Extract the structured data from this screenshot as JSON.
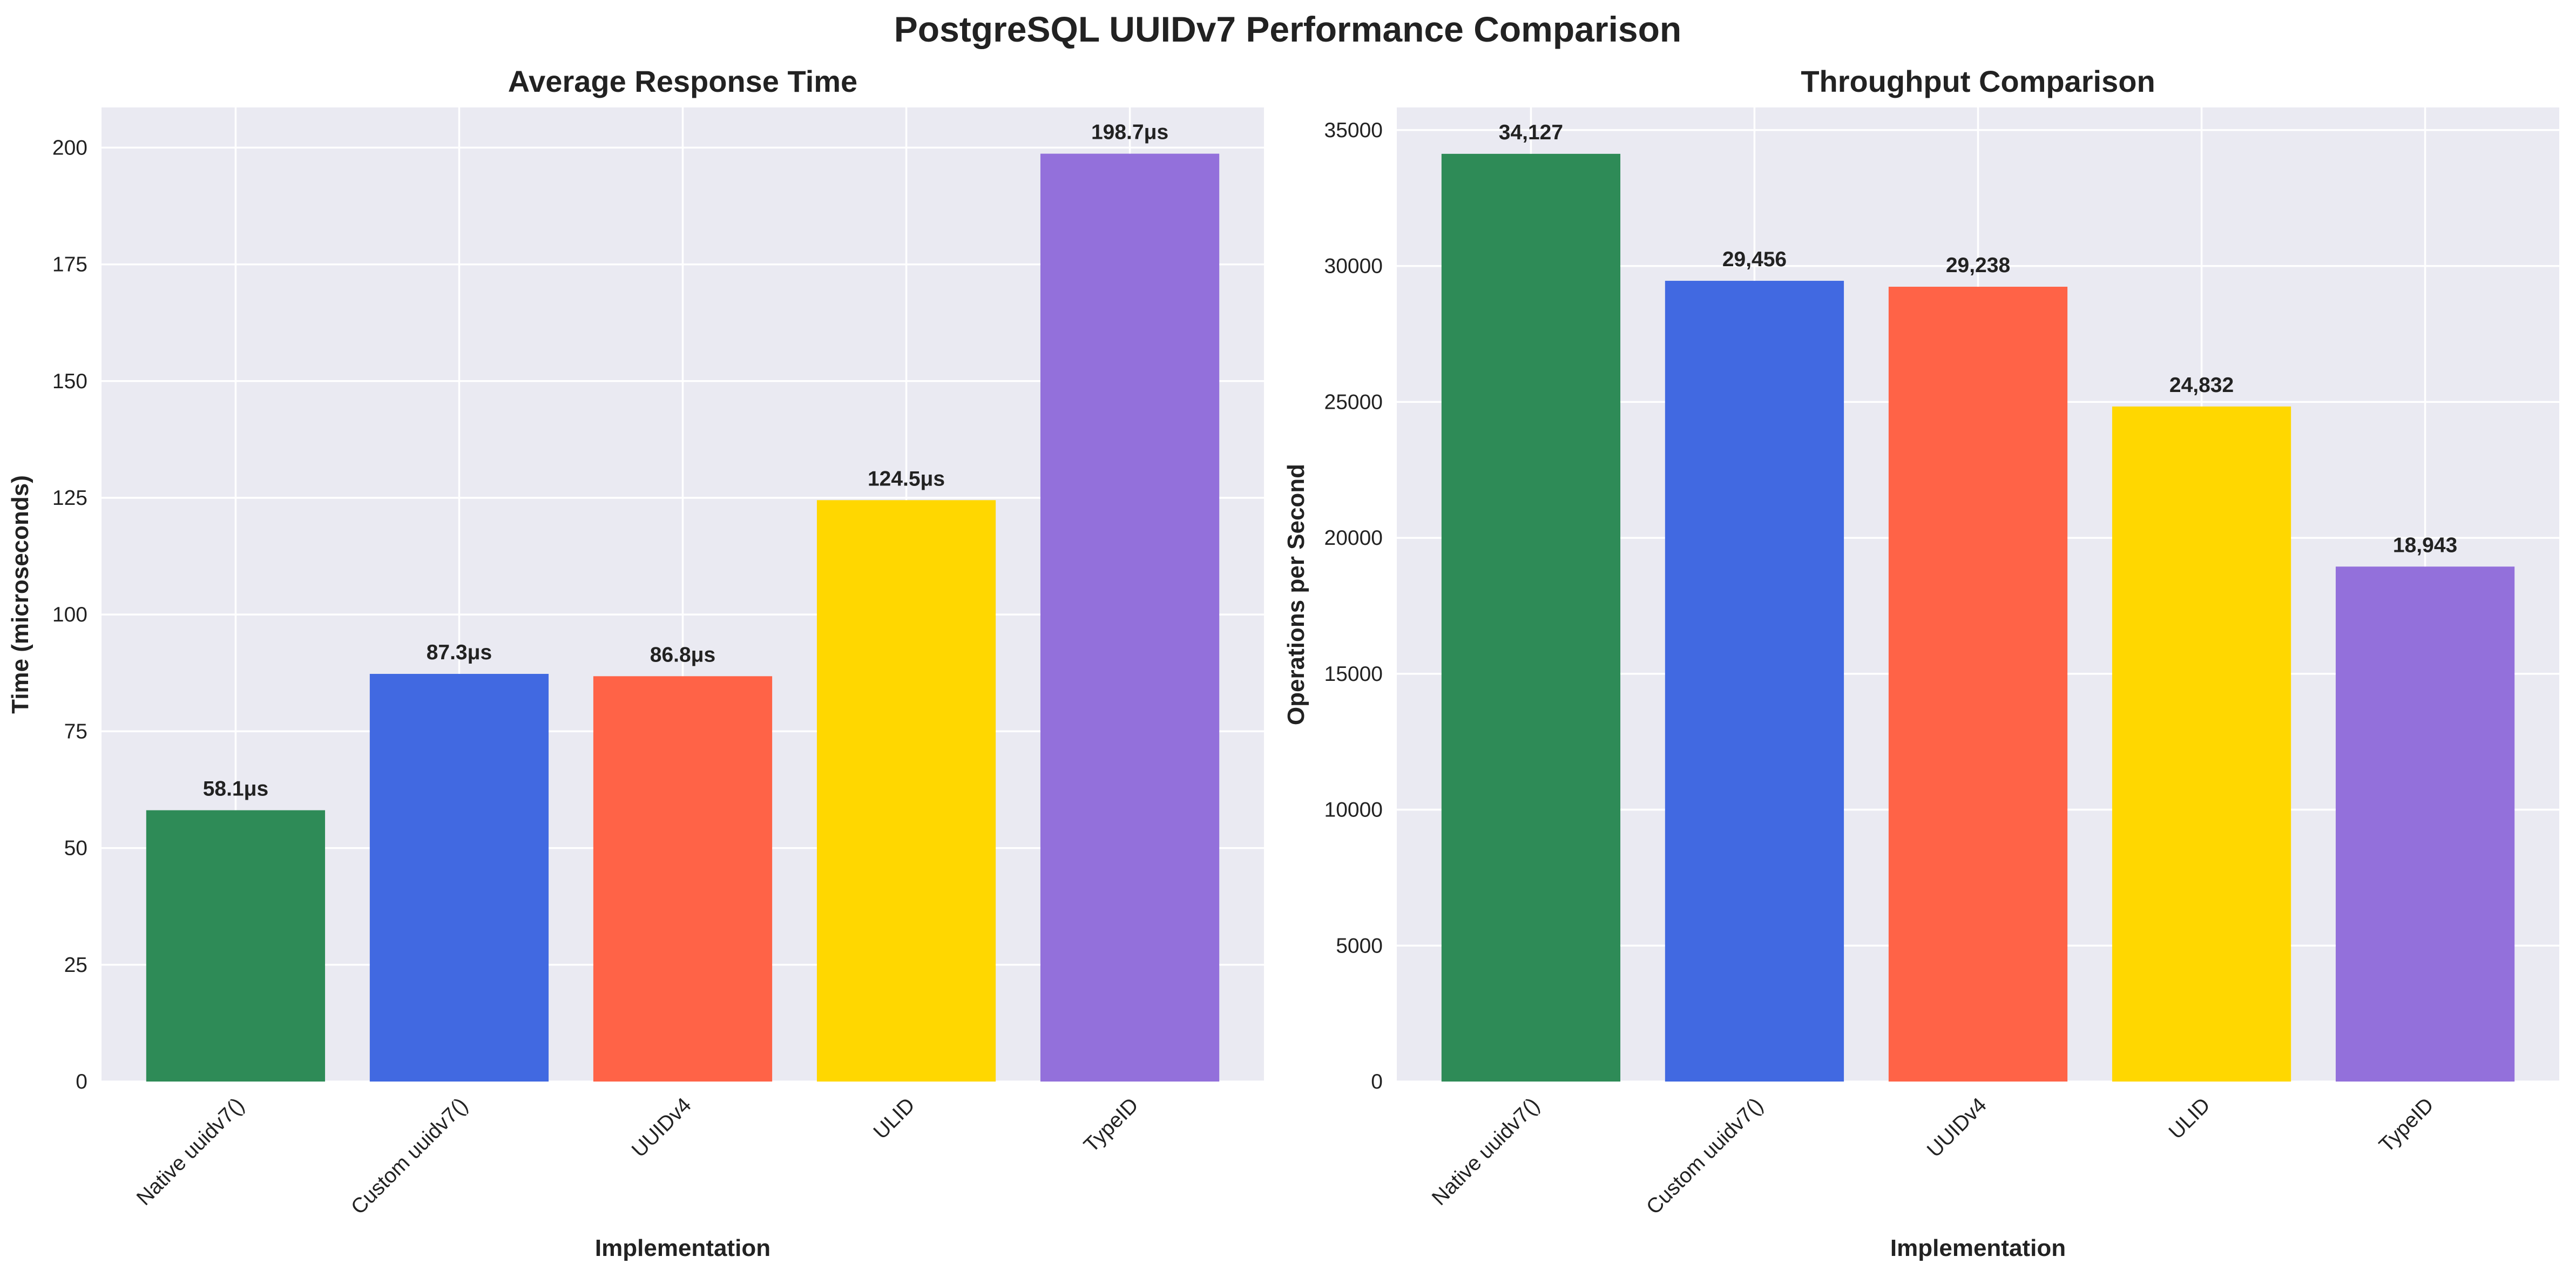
{
  "figure": {
    "title": "PostgreSQL UUIDv7 Performance Comparison"
  },
  "chart_data": [
    {
      "type": "bar",
      "title": "Average Response Time",
      "xlabel": "Implementation",
      "ylabel": "Time (microseconds)",
      "categories": [
        "Native uuidv7()",
        "Custom uuidv7()",
        "UUIDv4",
        "ULID",
        "TypeID"
      ],
      "values": [
        58.1,
        87.3,
        86.8,
        124.5,
        198.7
      ],
      "value_labels": [
        "58.1μs",
        "87.3μs",
        "86.8μs",
        "124.5μs",
        "198.7μs"
      ],
      "colors": [
        "#2e8b57",
        "#4169e1",
        "#ff6347",
        "#ffd700",
        "#9370db"
      ],
      "ylim": [
        0,
        208.6
      ],
      "yticks": [
        0,
        25,
        50,
        75,
        100,
        125,
        150,
        175,
        200
      ],
      "ytick_labels": [
        "0",
        "25",
        "50",
        "75",
        "100",
        "125",
        "150",
        "175",
        "200"
      ],
      "grid": true,
      "style": "seaborn-darkgrid"
    },
    {
      "type": "bar",
      "title": "Throughput Comparison",
      "xlabel": "Implementation",
      "ylabel": "Operations per Second",
      "categories": [
        "Native uuidv7()",
        "Custom uuidv7()",
        "UUIDv4",
        "ULID",
        "TypeID"
      ],
      "values": [
        34127,
        29456,
        29238,
        24832,
        18943
      ],
      "value_labels": [
        "34,127",
        "29,456",
        "29,238",
        "24,832",
        "18,943"
      ],
      "colors": [
        "#2e8b57",
        "#4169e1",
        "#ff6347",
        "#ffd700",
        "#9370db"
      ],
      "ylim": [
        0,
        35833
      ],
      "yticks": [
        0,
        5000,
        10000,
        15000,
        20000,
        25000,
        30000,
        35000
      ],
      "ytick_labels": [
        "0",
        "5000",
        "10000",
        "15000",
        "20000",
        "25000",
        "30000",
        "35000"
      ],
      "grid": true,
      "style": "seaborn-darkgrid"
    }
  ]
}
